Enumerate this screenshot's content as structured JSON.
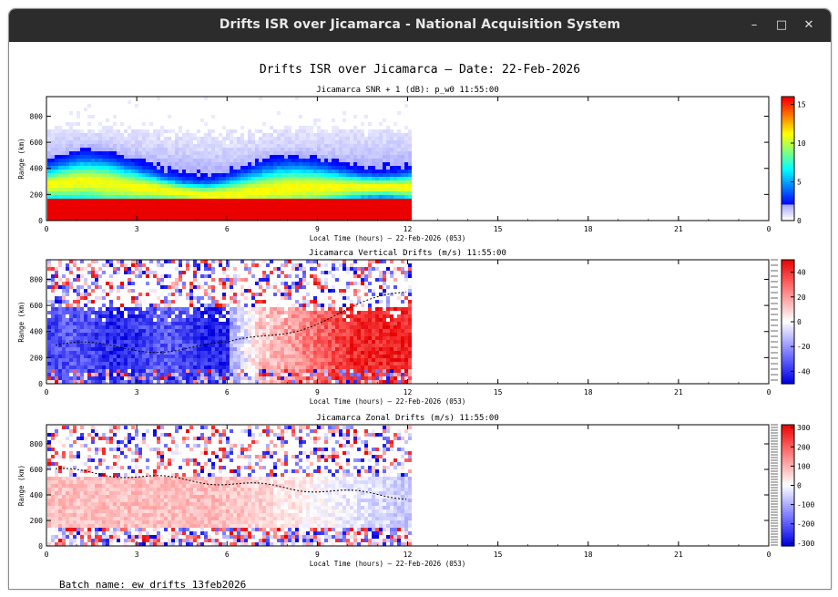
{
  "window": {
    "title": "Drifts ISR over Jicamarca - National Acquisition System",
    "controls": {
      "minimize": "–",
      "maximize": "□",
      "close": "✕"
    }
  },
  "figure": {
    "title": "Drifts ISR over Jicamarca — Date: 22-Feb-2026",
    "batch_label": "Batch name: ew_drifts_13feb2026"
  },
  "panels": [
    {
      "id": "snr",
      "title": "Jicamarca SNR + 1 (dB): p_w0 11:55:00",
      "xlabel": "Local Time (hours) — 22-Feb-2026 (053)",
      "ylabel": "Range (km)",
      "xticks": [
        "0",
        "3",
        "6",
        "9",
        "12",
        "15",
        "18",
        "21",
        "0"
      ],
      "yticks": [
        "0",
        "200",
        "400",
        "600",
        "800"
      ],
      "cbar_ticks": [
        "15",
        "10",
        "5",
        "0"
      ]
    },
    {
      "id": "vertical",
      "title": "Jicamarca Vertical Drifts (m/s) 11:55:00",
      "xlabel": "Local Time (hours) — 22-Feb-2026 (053)",
      "ylabel": "Range (km)",
      "xticks": [
        "0",
        "3",
        "6",
        "9",
        "12",
        "15",
        "18",
        "21",
        "0"
      ],
      "yticks": [
        "0",
        "200",
        "400",
        "600",
        "800"
      ],
      "cbar_ticks": [
        "40",
        "20",
        "0",
        "-20",
        "-40"
      ]
    },
    {
      "id": "zonal",
      "title": "Jicamarca Zonal Drifts (m/s) 11:55:00",
      "xlabel": "Local Time (hours) — 22-Feb-2026 (053)",
      "ylabel": "Range (km)",
      "xticks": [
        "0",
        "3",
        "6",
        "9",
        "12",
        "15",
        "18",
        "21",
        "0"
      ],
      "yticks": [
        "0",
        "200",
        "400",
        "600",
        "800"
      ],
      "cbar_ticks": [
        "300",
        "200",
        "100",
        "0",
        "-100",
        "-200",
        "-300"
      ]
    }
  ],
  "colors": {
    "titlebar": "#2c2c2c",
    "axis": "#000000"
  }
}
